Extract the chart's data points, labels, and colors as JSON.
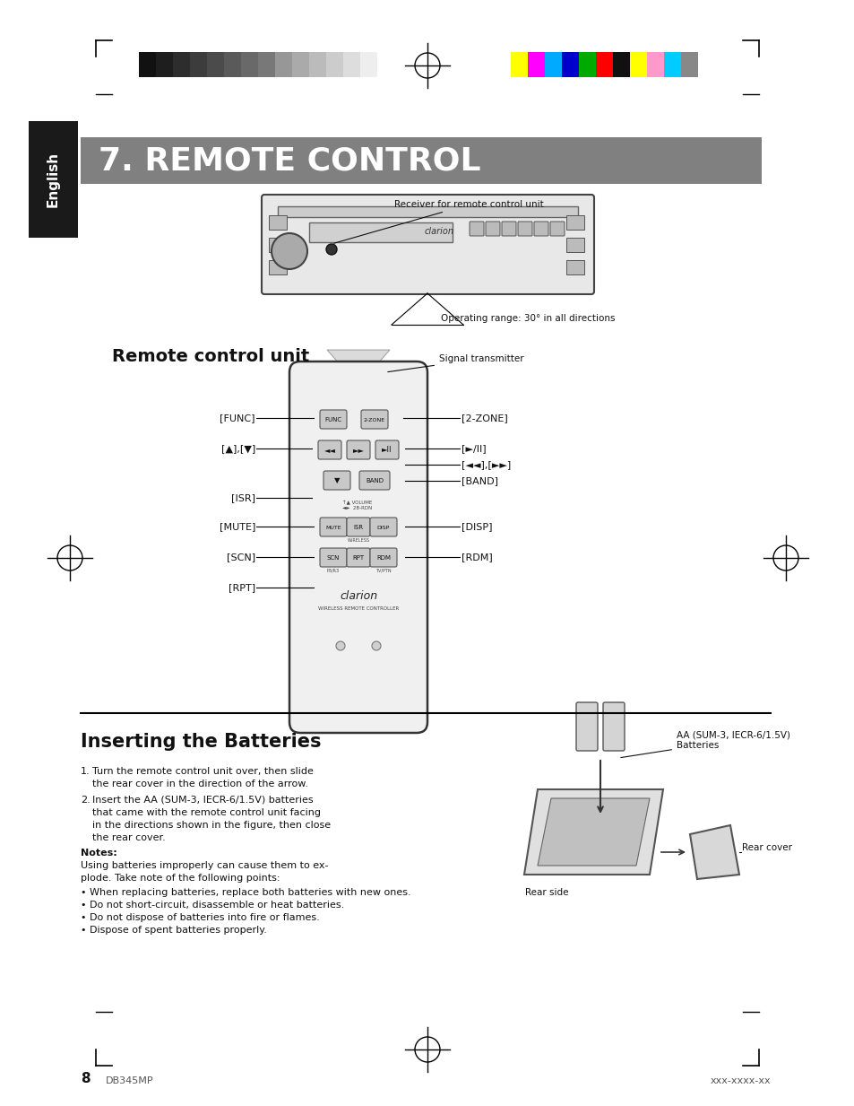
{
  "bg_color": "#ffffff",
  "page_width": 9.54,
  "page_height": 12.33,
  "title_text": "7. REMOTE CONTROL",
  "title_bg": "#808080",
  "title_text_color": "#ffffff",
  "section2_title": "Inserting the Batteries",
  "sidebar_text": "English",
  "sidebar_bg": "#1a1a1a",
  "sidebar_text_color": "#ffffff",
  "remote_control_unit_label": "Remote control unit",
  "signal_transmitter_label": "Signal transmitter",
  "receiver_label": "Receiver for remote control unit",
  "operating_range_label": "Operating range: 30° in all directions",
  "battery_label": "AA (SUM-3, IECR-6/1.5V)\nBatteries",
  "rear_cover_label": "Rear cover",
  "rear_side_label": "Rear side",
  "notes_title": "Notes:",
  "notes_text": "Using batteries improperly can cause them to explode. Take note of the following points:",
  "bullet_points": [
    "When replacing batteries, replace both batteries with new ones.",
    "Do not short-circuit, disassemble or heat batteries.",
    "Do not dispose of batteries into fire or flames.",
    "Dispose of spent batteries properly."
  ],
  "page_number": "8",
  "model_number": "DB345MP",
  "footer_right": "xxx-xxxx-xx",
  "grayscale_colors": [
    "#111111",
    "#1e1e1e",
    "#2d2d2d",
    "#3c3c3c",
    "#4b4b4b",
    "#5a5a5a",
    "#696969",
    "#787878",
    "#979797",
    "#aaaaaa",
    "#bbbbbb",
    "#cccccc",
    "#dddddd",
    "#eeeeee",
    "#ffffff"
  ],
  "color_bars": [
    "#ffff00",
    "#ff00ff",
    "#00aaff",
    "#0000cc",
    "#00aa00",
    "#ff0000",
    "#111111",
    "#ffff00",
    "#ff99cc",
    "#00ccff",
    "#888888"
  ]
}
